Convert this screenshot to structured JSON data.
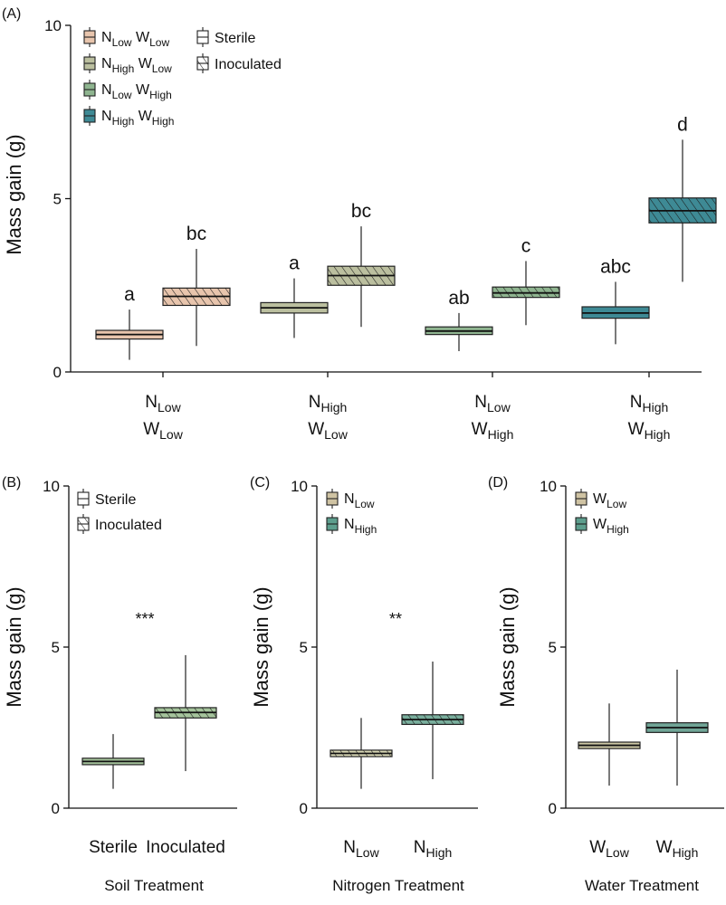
{
  "chart_data": [
    {
      "id": "A",
      "type": "box",
      "panel_label": "(A)",
      "ylabel": "Mass gain (g)",
      "ylim": [
        0,
        10
      ],
      "yticks": [
        "0",
        "5",
        "10"
      ],
      "groups": [
        {
          "n": "N",
          "n_sub": "Low",
          "w": "W",
          "w_sub": "Low"
        },
        {
          "n": "N",
          "n_sub": "High",
          "w": "W",
          "w_sub": "Low"
        },
        {
          "n": "N",
          "n_sub": "Low",
          "w": "W",
          "w_sub": "High"
        },
        {
          "n": "N",
          "n_sub": "High",
          "w": "W",
          "w_sub": "High"
        }
      ],
      "boxes": [
        {
          "group": 0,
          "soil": "Sterile",
          "min": 0.35,
          "q1": 0.95,
          "median": 1.08,
          "q3": 1.2,
          "max": 1.8,
          "letter": "a"
        },
        {
          "group": 0,
          "soil": "Inoculated",
          "min": 0.75,
          "q1": 1.92,
          "median": 2.18,
          "q3": 2.42,
          "max": 3.55,
          "letter": "bc"
        },
        {
          "group": 1,
          "soil": "Sterile",
          "min": 0.98,
          "q1": 1.7,
          "median": 1.85,
          "q3": 2.0,
          "max": 2.7,
          "letter": "a"
        },
        {
          "group": 1,
          "soil": "Inoculated",
          "min": 1.3,
          "q1": 2.5,
          "median": 2.78,
          "q3": 3.05,
          "max": 4.2,
          "letter": "bc"
        },
        {
          "group": 2,
          "soil": "Sterile",
          "min": 0.6,
          "q1": 1.08,
          "median": 1.18,
          "q3": 1.3,
          "max": 1.7,
          "letter": "ab"
        },
        {
          "group": 2,
          "soil": "Inoculated",
          "min": 1.35,
          "q1": 2.15,
          "median": 2.28,
          "q3": 2.45,
          "max": 3.2,
          "letter": "c"
        },
        {
          "group": 3,
          "soil": "Sterile",
          "min": 0.8,
          "q1": 1.55,
          "median": 1.7,
          "q3": 1.88,
          "max": 2.6,
          "letter": "abc"
        },
        {
          "group": 3,
          "soil": "Inoculated",
          "min": 2.6,
          "q1": 4.3,
          "median": 4.65,
          "q3": 5.02,
          "max": 6.7,
          "letter": "d"
        }
      ],
      "legend": [
        {
          "n": "N",
          "n_sub": "Low",
          "w": "W",
          "w_sub": "Low",
          "color": "#e8c5ad"
        },
        {
          "n": "N",
          "n_sub": "High",
          "w": "W",
          "w_sub": "Low",
          "color": "#bbbf9f"
        },
        {
          "n": "N",
          "n_sub": "Low",
          "w": "W",
          "w_sub": "High",
          "color": "#8fb590"
        },
        {
          "n": "N",
          "n_sub": "High",
          "w": "W",
          "w_sub": "High",
          "color": "#3e8a95"
        }
      ],
      "soil_legend": [
        {
          "label": "Sterile",
          "hatched": false
        },
        {
          "label": "Inoculated",
          "hatched": true
        }
      ]
    },
    {
      "id": "B",
      "type": "box",
      "panel_label": "(B)",
      "ylabel": "Mass gain (g)",
      "xlabel": "Soil Treatment",
      "ylim": [
        0,
        10
      ],
      "yticks": [
        "0",
        "5",
        "10"
      ],
      "significance": "***",
      "legend": [
        {
          "label": "Sterile",
          "hatched": false
        },
        {
          "label": "Inoculated",
          "hatched": true
        }
      ],
      "boxes": [
        {
          "category": "Sterile",
          "min": 0.6,
          "q1": 1.35,
          "median": 1.45,
          "q3": 1.55,
          "max": 2.3,
          "color": "#a5c49c",
          "hatched": false
        },
        {
          "category": "Inoculated",
          "min": 1.15,
          "q1": 2.8,
          "median": 2.97,
          "q3": 3.12,
          "max": 4.75,
          "color": "#a5c49c",
          "hatched": true
        }
      ]
    },
    {
      "id": "C",
      "type": "box",
      "panel_label": "(C)",
      "ylabel": "Mass gain (g)",
      "xlabel": "Nitrogen Treatment",
      "ylim": [
        0,
        10
      ],
      "yticks": [
        "0",
        "5",
        "10"
      ],
      "significance": "**",
      "legend": [
        {
          "main": "N",
          "sub": "Low",
          "color": "#cfc3a3"
        },
        {
          "main": "N",
          "sub": "High",
          "color": "#5d9e8d"
        }
      ],
      "boxes": [
        {
          "main": "N",
          "sub": "Low",
          "min": 0.6,
          "q1": 1.6,
          "median": 1.7,
          "q3": 1.8,
          "max": 2.8,
          "color": "#d9d8b6",
          "hatched": true
        },
        {
          "main": "N",
          "sub": "High",
          "min": 0.9,
          "q1": 2.6,
          "median": 2.75,
          "q3": 2.9,
          "max": 4.55,
          "color": "#79ae9c",
          "hatched": true
        }
      ]
    },
    {
      "id": "D",
      "type": "box",
      "panel_label": "(D)",
      "ylabel": "Mass gain (g)",
      "xlabel": "Water Treatment",
      "ylim": [
        0,
        10
      ],
      "yticks": [
        "0",
        "5",
        "10"
      ],
      "legend": [
        {
          "main": "W",
          "sub": "Low",
          "color": "#cfc3a3"
        },
        {
          "main": "W",
          "sub": "High",
          "color": "#5d9e8d"
        }
      ],
      "boxes": [
        {
          "main": "W",
          "sub": "Low",
          "min": 0.7,
          "q1": 1.85,
          "median": 1.95,
          "q3": 2.05,
          "max": 3.25,
          "color": "#ccc7a5",
          "hatched": false
        },
        {
          "main": "W",
          "sub": "High",
          "min": 0.7,
          "q1": 2.35,
          "median": 2.5,
          "q3": 2.65,
          "max": 4.3,
          "color": "#70a596",
          "hatched": false
        }
      ]
    }
  ]
}
